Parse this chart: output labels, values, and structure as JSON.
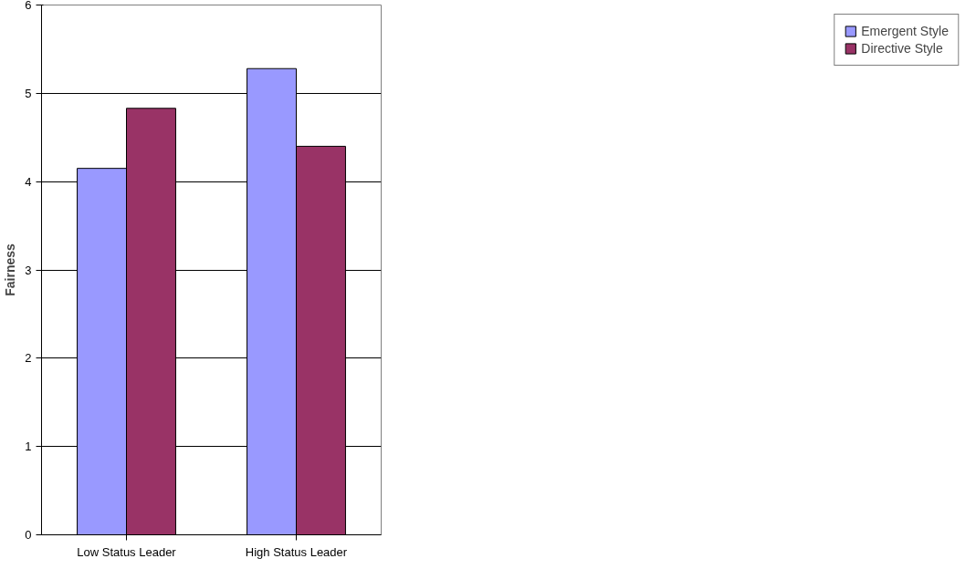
{
  "chart_data": {
    "type": "bar",
    "ylabel": "Fairness",
    "categories": [
      "Low Status Leader",
      "High Status Leader"
    ],
    "series": [
      {
        "name": "Emergent Style",
        "color": "#9999ff",
        "values": [
          4.15,
          5.28
        ]
      },
      {
        "name": "Directive Style",
        "color": "#993366",
        "values": [
          4.83,
          4.4
        ]
      }
    ],
    "ylim": [
      0,
      6
    ],
    "yticks": [
      0,
      1,
      2,
      3,
      4,
      5,
      6
    ],
    "grid": "y",
    "legend": "right"
  }
}
